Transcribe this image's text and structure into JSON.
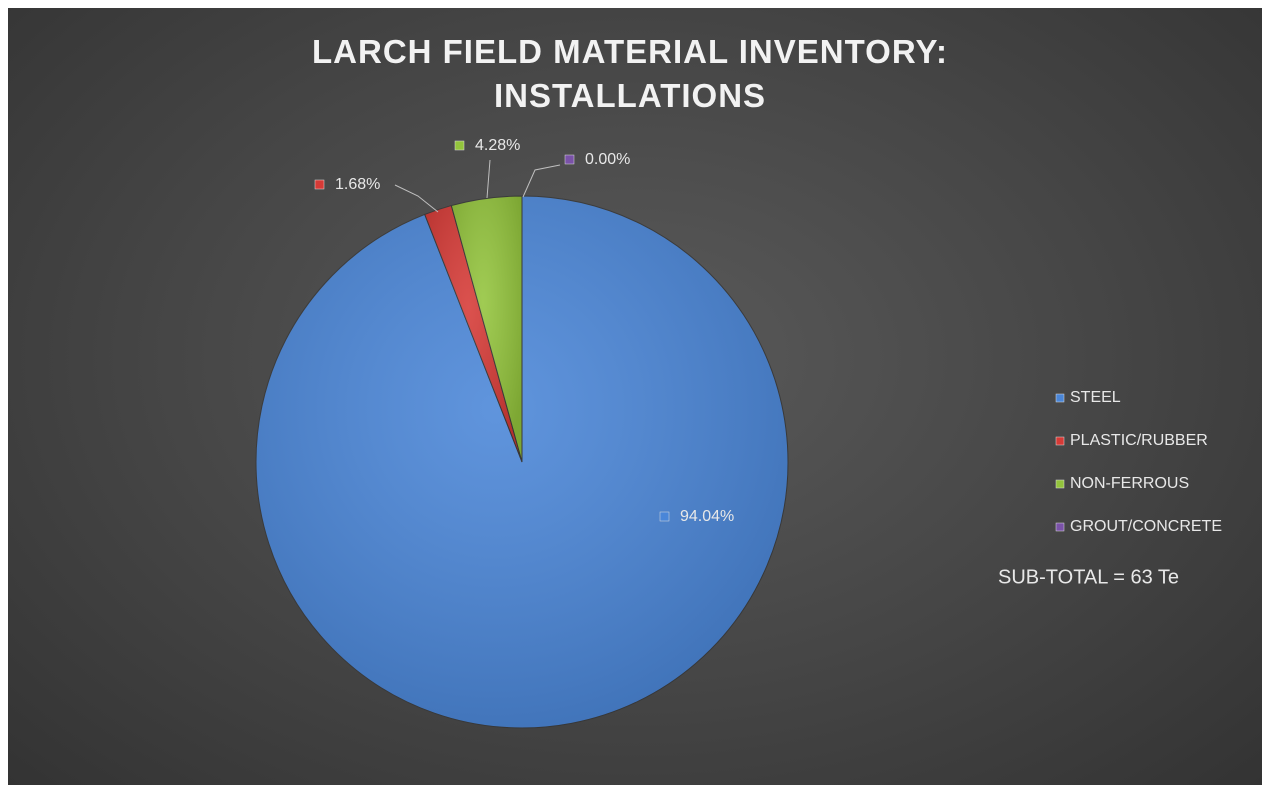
{
  "chart_data": {
    "type": "pie",
    "title": "LARCH FIELD MATERIAL INVENTORY: INSTALLATIONS",
    "categories": [
      "STEEL",
      "PLASTIC/RUBBER",
      "NON-FERROUS",
      "GROUT/CONCRETE"
    ],
    "values": [
      94.04,
      1.68,
      4.28,
      0.0
    ],
    "value_labels": [
      "94.04%",
      "1.68%",
      "4.28%",
      "0.00%"
    ],
    "colors": [
      "#4a86d8",
      "#d63a36",
      "#93c43c",
      "#7a52a8"
    ],
    "legend": "right",
    "annotations": [
      "SUB-TOTAL = 63 Te"
    ]
  }
}
